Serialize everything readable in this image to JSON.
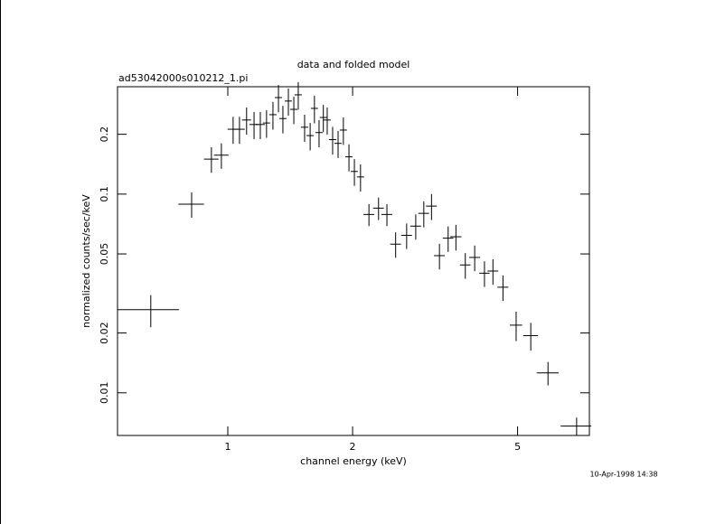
{
  "chart_data": {
    "type": "errorbar",
    "title": "data and folded model",
    "subtitle": "ad53042000s010212_1.pi",
    "x_label": "channel energy (keV)",
    "y_label": "normalized counts/sec/keV",
    "timestamp": "10-Apr-1998 14:38",
    "xscale": "log",
    "yscale": "log",
    "color": "#000000",
    "xlim": [
      0.542,
      7.45
    ],
    "ylim": [
      0.0061,
      0.347
    ],
    "xticks": [
      1,
      2,
      5
    ],
    "yticks": [
      0.01,
      0.02,
      0.05,
      0.1,
      0.2
    ],
    "x": [
      0.652,
      0.818,
      0.913,
      0.965,
      1.03,
      1.067,
      1.11,
      1.157,
      1.198,
      1.24,
      1.285,
      1.325,
      1.358,
      1.4,
      1.443,
      1.479,
      1.532,
      1.58,
      1.618,
      1.66,
      1.7,
      1.737,
      1.79,
      1.845,
      1.9,
      1.96,
      2.02,
      2.09,
      2.19,
      2.31,
      2.42,
      2.54,
      2.7,
      2.84,
      2.97,
      3.1,
      3.24,
      3.4,
      3.55,
      3.74,
      3.94,
      4.16,
      4.36,
      4.61,
      4.96,
      5.38,
      5.92,
      6.94
    ],
    "xerr": [
      0.11,
      0.058,
      0.037,
      0.039,
      0.031,
      0.032,
      0.028,
      0.029,
      0.03,
      0.025,
      0.026,
      0.027,
      0.027,
      0.028,
      0.029,
      0.03,
      0.031,
      0.032,
      0.032,
      0.033,
      0.034,
      0.035,
      0.036,
      0.037,
      0.038,
      0.039,
      0.04,
      0.042,
      0.066,
      0.069,
      0.073,
      0.076,
      0.081,
      0.085,
      0.089,
      0.093,
      0.097,
      0.1,
      0.11,
      0.11,
      0.12,
      0.12,
      0.13,
      0.14,
      0.17,
      0.22,
      0.36,
      0.59
    ],
    "values": [
      0.0262,
      0.089,
      0.15,
      0.157,
      0.212,
      0.212,
      0.236,
      0.224,
      0.224,
      0.228,
      0.251,
      0.306,
      0.24,
      0.294,
      0.267,
      0.316,
      0.217,
      0.197,
      0.27,
      0.204,
      0.243,
      0.236,
      0.188,
      0.18,
      0.21,
      0.154,
      0.13,
      0.122,
      0.079,
      0.085,
      0.079,
      0.056,
      0.062,
      0.069,
      0.08,
      0.087,
      0.049,
      0.06,
      0.061,
      0.044,
      0.048,
      0.04,
      0.041,
      0.034,
      0.0219,
      0.0194,
      0.0126,
      0.0068
    ],
    "yerr": [
      0.0048,
      0.013,
      0.022,
      0.023,
      0.033,
      0.033,
      0.037,
      0.035,
      0.035,
      0.036,
      0.04,
      0.048,
      0.038,
      0.046,
      0.042,
      0.05,
      0.034,
      0.031,
      0.043,
      0.032,
      0.038,
      0.037,
      0.03,
      0.028,
      0.033,
      0.024,
      0.02,
      0.019,
      0.01,
      0.011,
      0.01,
      0.0082,
      0.0091,
      0.01,
      0.012,
      0.013,
      0.0072,
      0.0088,
      0.009,
      0.0065,
      0.0071,
      0.0059,
      0.006,
      0.005,
      0.0037,
      0.0031,
      0.0017,
      0.0007
    ]
  }
}
